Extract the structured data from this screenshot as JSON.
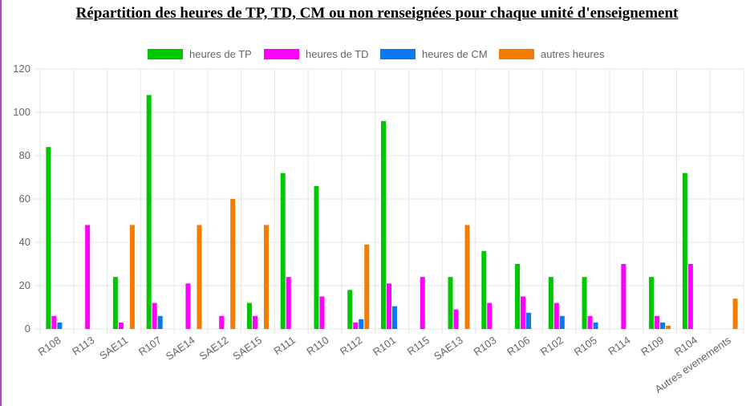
{
  "title": "Répartition des heures de TP, TD, CM ou non renseignées pour chaque unité d'enseignement",
  "chart_data": {
    "type": "bar",
    "title": "Répartition des heures de TP, TD, CM ou non renseignées pour chaque unité d'enseignement",
    "xlabel": "",
    "ylabel": "",
    "ylim": [
      0,
      120
    ],
    "yticks": [
      0,
      20,
      40,
      60,
      80,
      100,
      120
    ],
    "grid": true,
    "legend_position": "top",
    "categories": [
      "R108",
      "R113",
      "SAE11",
      "R107",
      "SAE14",
      "SAE12",
      "SAE15",
      "R111",
      "R110",
      "R112",
      "R101",
      "R115",
      "SAE13",
      "R103",
      "R106",
      "R102",
      "R105",
      "R114",
      "R109",
      "R104",
      "Autres evenements"
    ],
    "series": [
      {
        "name": "heures de TP",
        "color": "#00c800",
        "values": [
          84,
          0,
          24,
          108,
          0,
          0,
          12,
          72,
          66,
          18,
          96,
          0,
          24,
          36,
          30,
          24,
          24,
          0,
          24,
          72,
          0
        ]
      },
      {
        "name": "heures de TD",
        "color": "#ff00ff",
        "values": [
          6,
          48,
          3,
          12,
          21,
          6,
          6,
          24,
          15,
          3,
          21,
          24,
          9,
          12,
          15,
          12,
          6,
          30,
          6,
          30,
          0
        ]
      },
      {
        "name": "heures de CM",
        "color": "#0a78f0",
        "values": [
          3,
          0,
          0,
          6,
          0,
          0,
          0,
          0,
          0,
          4.5,
          10.5,
          0,
          0,
          0,
          7.5,
          6,
          3,
          0,
          3,
          0,
          0
        ]
      },
      {
        "name": "autres heures",
        "color": "#f57c00",
        "values": [
          0,
          0,
          48,
          0,
          48,
          60,
          48,
          0,
          0,
          39,
          0,
          0,
          48,
          0,
          0,
          0,
          0,
          0,
          1.5,
          0,
          14
        ]
      }
    ]
  }
}
